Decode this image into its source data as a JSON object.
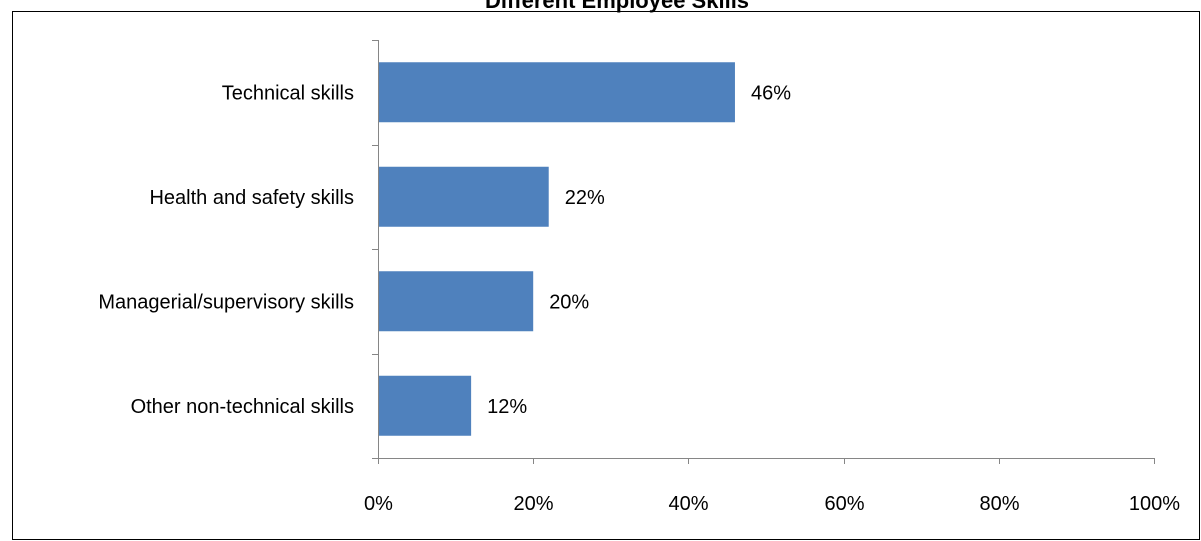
{
  "chart_data": {
    "type": "bar",
    "orientation": "horizontal",
    "title": "Different Employee Skills",
    "categories": [
      "Technical skills",
      "Health and safety skills",
      "Managerial/supervisory skills",
      "Other non-technical skills"
    ],
    "values": [
      46,
      22,
      20,
      12
    ],
    "value_labels": [
      "46%",
      "22%",
      "20%",
      "12%"
    ],
    "xlim": [
      0,
      100
    ],
    "x_ticks": [
      "0%",
      "20%",
      "40%",
      "60%",
      "80%",
      "100%"
    ],
    "grid": false,
    "legend": "none",
    "bar_color": "#4F81BD"
  }
}
